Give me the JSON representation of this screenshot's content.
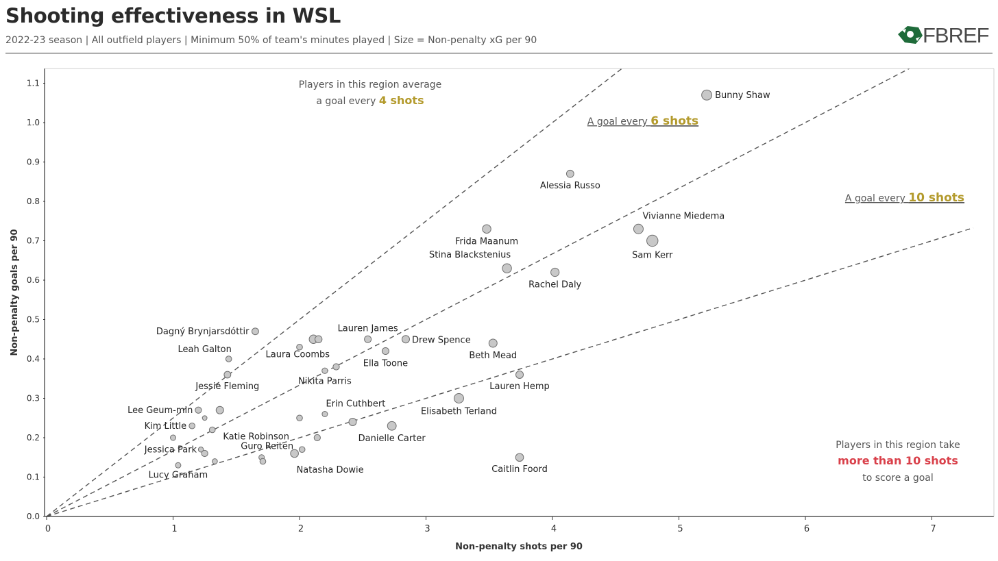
{
  "header": {
    "title": "Shooting effectiveness in WSL",
    "subtitle": "2022-23 season | All outfield players | Minimum 50% of team's minutes played | Size = Non-penalty xG per 90",
    "logo_text": "FBREF"
  },
  "colors": {
    "accent_gold": "#b39a2c",
    "accent_red": "#d9404a",
    "point_fill": "#c8c8c8",
    "point_stroke": "#6e6e6e",
    "line": "#555555"
  },
  "chart_data": {
    "type": "scatter",
    "title": "Shooting effectiveness in WSL",
    "xlabel": "Non-penalty shots per 90",
    "ylabel": "Non-penalty goals per 90",
    "size_variable": "Non-penalty xG per 90",
    "xlim": [
      0,
      7.5
    ],
    "ylim": [
      0,
      1.15
    ],
    "x_ticks": [
      0,
      1,
      2,
      3,
      4,
      5,
      6,
      7
    ],
    "y_ticks": [
      0.0,
      0.1,
      0.2,
      0.3,
      0.4,
      0.5,
      0.6,
      0.7,
      0.8,
      0.9,
      1.0,
      1.1
    ],
    "grid": false,
    "reference_lines": [
      {
        "shots_per_goal": 4,
        "slope": 0.25
      },
      {
        "shots_per_goal": 6,
        "slope": 0.1667
      },
      {
        "shots_per_goal": 10,
        "slope": 0.1
      }
    ],
    "annotations": {
      "region_4": {
        "line1": "Players in this region average",
        "line2_prefix": "a goal every ",
        "line2_highlight": "4 shots"
      },
      "label_6": {
        "prefix": "A goal every ",
        "highlight": "6 shots"
      },
      "label_10": {
        "prefix": "A goal every ",
        "highlight": "10 shots"
      },
      "region_10plus": {
        "line1": "Players in this region take",
        "line2": "more than 10 shots",
        "line3": "to score a goal"
      }
    },
    "points": [
      {
        "name": "Bunny Shaw",
        "x": 5.22,
        "y": 1.07,
        "xg": 0.82
      },
      {
        "name": "Alessia Russo",
        "x": 4.14,
        "y": 0.87,
        "xg": 0.48
      },
      {
        "name": "Vivianne Miedema",
        "x": 4.68,
        "y": 0.73,
        "xg": 0.75
      },
      {
        "name": "Sam Kerr",
        "x": 4.79,
        "y": 0.7,
        "xg": 0.95
      },
      {
        "name": "Frida Maanum",
        "x": 3.48,
        "y": 0.73,
        "xg": 0.62
      },
      {
        "name": "Stina Blackstenius",
        "x": 3.64,
        "y": 0.63,
        "xg": 0.7
      },
      {
        "name": "Rachel Daly",
        "x": 4.02,
        "y": 0.62,
        "xg": 0.6
      },
      {
        "name": "Dagný Brynjarsdóttir",
        "x": 1.65,
        "y": 0.47,
        "xg": 0.4
      },
      {
        "name": "Leah Galton",
        "x": 1.44,
        "y": 0.4,
        "xg": 0.3
      },
      {
        "name": "Laura Coombs",
        "x": 2.11,
        "y": 0.45,
        "xg": 0.62
      },
      {
        "name": "",
        "x": 2.15,
        "y": 0.45,
        "xg": 0.45
      },
      {
        "name": "",
        "x": 2.0,
        "y": 0.43,
        "xg": 0.3
      },
      {
        "name": "Lauren James",
        "x": 2.54,
        "y": 0.45,
        "xg": 0.42
      },
      {
        "name": "Drew Spence",
        "x": 2.84,
        "y": 0.45,
        "xg": 0.5
      },
      {
        "name": "Ella Toone",
        "x": 2.68,
        "y": 0.42,
        "xg": 0.42
      },
      {
        "name": "Beth Mead",
        "x": 3.53,
        "y": 0.44,
        "xg": 0.58
      },
      {
        "name": "Jessie Fleming",
        "x": 1.43,
        "y": 0.36,
        "xg": 0.4
      },
      {
        "name": "Nikita Parris",
        "x": 2.2,
        "y": 0.37,
        "xg": 0.28
      },
      {
        "name": "",
        "x": 2.29,
        "y": 0.38,
        "xg": 0.35
      },
      {
        "name": "Lauren Hemp",
        "x": 3.74,
        "y": 0.36,
        "xg": 0.5
      },
      {
        "name": "Elisabeth Terland",
        "x": 3.26,
        "y": 0.3,
        "xg": 0.75
      },
      {
        "name": "Lee Geum-min",
        "x": 1.2,
        "y": 0.27,
        "xg": 0.35
      },
      {
        "name": "",
        "x": 1.37,
        "y": 0.27,
        "xg": 0.5
      },
      {
        "name": "",
        "x": 1.25,
        "y": 0.25,
        "xg": 0.15
      },
      {
        "name": "Erin Cuthbert",
        "x": 2.2,
        "y": 0.26,
        "xg": 0.25
      },
      {
        "name": "",
        "x": 2.0,
        "y": 0.25,
        "xg": 0.3
      },
      {
        "name": "Katie Robinson",
        "x": 1.31,
        "y": 0.22,
        "xg": 0.3
      },
      {
        "name": "Kim Little",
        "x": 1.15,
        "y": 0.23,
        "xg": 0.3
      },
      {
        "name": "",
        "x": 2.42,
        "y": 0.24,
        "xg": 0.5
      },
      {
        "name": "Danielle Carter",
        "x": 2.73,
        "y": 0.23,
        "xg": 0.65
      },
      {
        "name": "",
        "x": 1.0,
        "y": 0.2,
        "xg": 0.25
      },
      {
        "name": "",
        "x": 2.14,
        "y": 0.2,
        "xg": 0.35
      },
      {
        "name": "Jessica Park",
        "x": 1.22,
        "y": 0.17,
        "xg": 0.2
      },
      {
        "name": "",
        "x": 1.25,
        "y": 0.16,
        "xg": 0.35
      },
      {
        "name": "Guro Reiten",
        "x": 2.02,
        "y": 0.17,
        "xg": 0.3
      },
      {
        "name": "Natasha Dowie",
        "x": 1.96,
        "y": 0.16,
        "xg": 0.55
      },
      {
        "name": "",
        "x": 1.7,
        "y": 0.15,
        "xg": 0.25
      },
      {
        "name": "",
        "x": 1.71,
        "y": 0.14,
        "xg": 0.3
      },
      {
        "name": "",
        "x": 1.33,
        "y": 0.14,
        "xg": 0.22
      },
      {
        "name": "Lucy Graham",
        "x": 1.04,
        "y": 0.13,
        "xg": 0.25
      },
      {
        "name": "Caitlin Foord",
        "x": 3.74,
        "y": 0.15,
        "xg": 0.55
      }
    ]
  }
}
